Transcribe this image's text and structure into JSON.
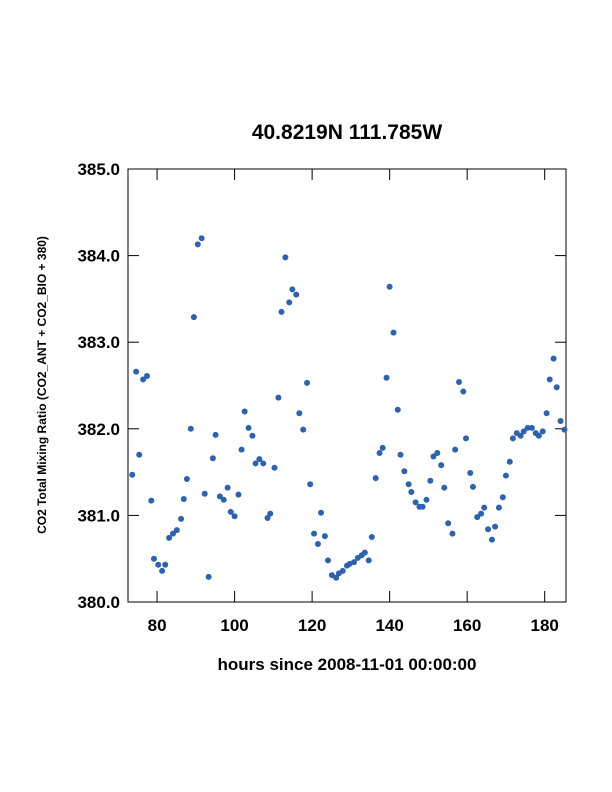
{
  "chart_data": {
    "type": "scatter",
    "title": "40.8219N  111.785W",
    "xlabel": "hours since 2008-11-01 00:00:00",
    "ylabel": "CO2 Total Mixing Ratio (CO2_ANT + CO2_BIO + 380)",
    "color": "#2e62ad",
    "x": [
      73.6,
      74.6,
      75.4,
      76.4,
      77.4,
      78.5,
      79.2,
      80.3,
      81.3,
      82.1,
      83.1,
      84.1,
      85.1,
      86.2,
      86.9,
      87.7,
      88.7,
      89.5,
      90.5,
      91.5,
      92.3,
      93.3,
      94.4,
      95.1,
      96.2,
      97.2,
      98.2,
      99.0,
      100.0,
      101.0,
      101.8,
      102.6,
      103.6,
      104.6,
      105.4,
      106.4,
      107.4,
      108.5,
      109.2,
      110.3,
      111.3,
      112.1,
      113.1,
      114.1,
      114.9,
      115.9,
      116.7,
      117.7,
      118.7,
      119.5,
      120.5,
      121.5,
      122.3,
      123.3,
      124.1,
      125.1,
      126.2,
      126.9,
      127.9,
      129.0,
      129.7,
      130.8,
      131.8,
      132.8,
      133.6,
      134.6,
      135.4,
      136.4,
      137.4,
      138.2,
      139.2,
      140.0,
      141.0,
      142.1,
      142.8,
      143.8,
      144.9,
      145.6,
      146.7,
      147.7,
      148.5,
      149.5,
      150.5,
      151.3,
      152.3,
      153.3,
      154.1,
      155.1,
      156.2,
      156.9,
      157.9,
      159.0,
      159.7,
      160.8,
      161.5,
      162.6,
      163.6,
      164.4,
      165.4,
      166.4,
      167.2,
      168.2,
      169.2,
      170.0,
      171.0,
      171.8,
      172.8,
      173.8,
      174.6,
      175.6,
      176.7,
      177.7,
      178.5,
      179.5,
      180.5,
      181.3,
      182.3,
      183.1,
      184.1,
      185.1
    ],
    "y": [
      381.47,
      382.66,
      381.7,
      382.57,
      382.61,
      381.17,
      380.5,
      380.43,
      380.36,
      380.43,
      380.74,
      380.79,
      380.83,
      380.96,
      381.19,
      381.42,
      382.0,
      383.29,
      384.13,
      384.2,
      381.25,
      380.29,
      381.66,
      381.93,
      381.22,
      381.18,
      381.32,
      381.04,
      380.99,
      381.24,
      381.76,
      382.2,
      382.01,
      381.92,
      381.6,
      381.65,
      381.6,
      380.97,
      381.02,
      381.55,
      382.36,
      383.35,
      383.98,
      383.46,
      383.61,
      383.55,
      382.18,
      381.99,
      382.53,
      381.36,
      380.79,
      380.67,
      381.03,
      380.76,
      380.48,
      380.31,
      380.28,
      380.33,
      380.36,
      380.42,
      380.44,
      380.46,
      380.51,
      380.54,
      380.57,
      380.48,
      380.75,
      381.43,
      381.72,
      381.78,
      382.59,
      383.64,
      383.11,
      382.22,
      381.7,
      381.51,
      381.36,
      381.27,
      381.15,
      381.1,
      381.1,
      381.18,
      381.4,
      381.68,
      381.72,
      381.58,
      381.32,
      380.91,
      380.79,
      381.76,
      382.54,
      382.43,
      381.89,
      381.49,
      381.33,
      380.98,
      381.02,
      381.09,
      380.84,
      380.72,
      380.87,
      381.09,
      381.21,
      381.46,
      381.62,
      381.89,
      381.95,
      381.92,
      381.97,
      382.01,
      382.01,
      381.95,
      381.92,
      381.97,
      382.18,
      382.57,
      382.81,
      382.48,
      382.09,
      381.99
    ],
    "xlim": [
      72.5,
      185.5
    ],
    "ylim": [
      380,
      385
    ],
    "xticks": [
      80,
      100,
      120,
      140,
      160,
      180
    ],
    "yticks": [
      {
        "value": 380,
        "label": "380.0"
      },
      {
        "value": 381,
        "label": "381.0"
      },
      {
        "value": 382,
        "label": "382.0"
      },
      {
        "value": 383,
        "label": "383.0"
      },
      {
        "value": 384,
        "label": "384.0"
      },
      {
        "value": 385,
        "label": "385.0"
      }
    ]
  }
}
